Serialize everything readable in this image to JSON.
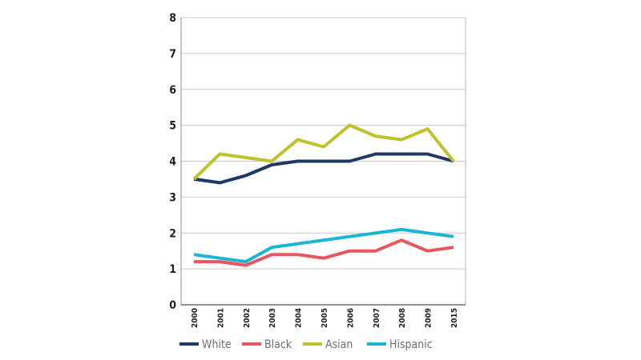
{
  "chart_data": {
    "type": "line",
    "categories": [
      "2000",
      "2001",
      "2002",
      "2003",
      "2004",
      "2005",
      "2006",
      "2007",
      "2008",
      "2009",
      "2015"
    ],
    "ylim": [
      0,
      8
    ],
    "yticks": [
      "0",
      "1",
      "2",
      "3",
      "4",
      "5",
      "6",
      "7",
      "8"
    ],
    "grid": true,
    "legend_position": "bottom",
    "series": [
      {
        "name": "White",
        "color": "#1f3864",
        "values": [
          3.5,
          3.4,
          3.6,
          3.9,
          4.0,
          4.0,
          4.0,
          4.2,
          4.2,
          4.2,
          4.0
        ]
      },
      {
        "name": "Black",
        "color": "#e8555f",
        "values": [
          1.2,
          1.2,
          1.1,
          1.4,
          1.4,
          1.3,
          1.5,
          1.5,
          1.8,
          1.5,
          1.6
        ]
      },
      {
        "name": "Asian",
        "color": "#bfc22a",
        "values": [
          3.5,
          4.2,
          4.1,
          4.0,
          4.6,
          4.4,
          5.0,
          4.7,
          4.6,
          4.9,
          4.0
        ]
      },
      {
        "name": "Hispanic",
        "color": "#19b5d6",
        "values": [
          1.4,
          1.3,
          1.2,
          1.6,
          1.7,
          1.8,
          1.9,
          2.0,
          2.1,
          2.0,
          1.9
        ]
      }
    ]
  }
}
